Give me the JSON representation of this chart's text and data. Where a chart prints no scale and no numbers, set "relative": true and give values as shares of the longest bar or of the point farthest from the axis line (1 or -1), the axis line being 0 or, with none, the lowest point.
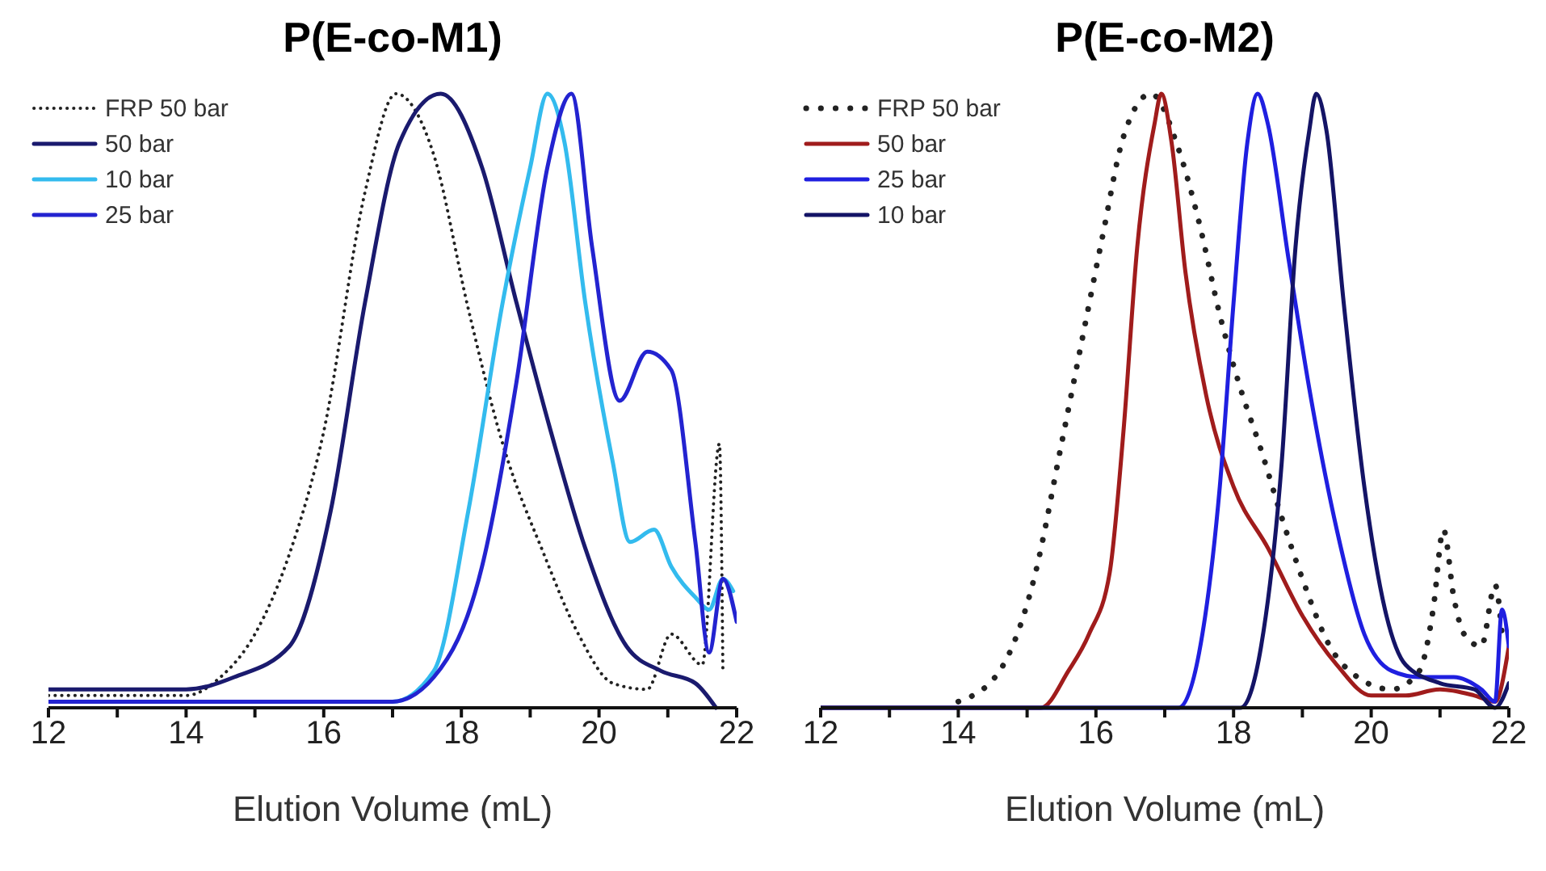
{
  "chart_data": [
    {
      "type": "line",
      "title": "P(E-co-M1)",
      "xlabel": "Elution Volume (mL)",
      "relative": true,
      "xlim": [
        12,
        22
      ],
      "xticks": [
        12,
        {
          "value": 13,
          "label": null
        },
        14,
        {
          "value": 15,
          "label": null
        },
        16,
        {
          "value": 17,
          "label": null
        },
        18,
        {
          "value": 19,
          "label": null
        },
        20,
        {
          "value": 21,
          "label": null
        },
        22
      ],
      "legend": "top left",
      "grid": false,
      "marker": "none",
      "series": [
        {
          "name": "FRP 50 bar",
          "color": "#222222",
          "line_style": "dotted",
          "x": [
            12,
            14.0,
            14.5,
            15.0,
            15.5,
            16.0,
            16.6,
            17.05,
            17.6,
            18.1,
            18.6,
            19.2,
            19.7,
            20.2,
            20.7,
            21.05,
            21.5,
            21.75,
            21.8
          ],
          "values": [
            0.02,
            0.02,
            0.05,
            0.12,
            0.25,
            0.45,
            0.84,
            1.0,
            0.9,
            0.65,
            0.43,
            0.25,
            0.12,
            0.04,
            0.03,
            0.12,
            0.07,
            0.43,
            0.06
          ]
        },
        {
          "name": "50 bar",
          "color": "#1a1a6e",
          "line_style": "solid",
          "x": [
            12,
            14,
            14.7,
            15.5,
            16.1,
            16.6,
            17.1,
            17.7,
            18.3,
            18.8,
            19.3,
            19.8,
            20.4,
            20.9,
            21.4,
            21.7
          ],
          "values": [
            0.03,
            0.03,
            0.05,
            0.1,
            0.32,
            0.66,
            0.92,
            1.0,
            0.88,
            0.66,
            0.45,
            0.26,
            0.1,
            0.06,
            0.04,
            0.0
          ]
        },
        {
          "name": "10 bar",
          "color": "#33bbee",
          "line_style": "solid",
          "x": [
            12,
            17.0,
            17.6,
            18.1,
            18.6,
            19.0,
            19.25,
            19.5,
            19.8,
            20.2,
            20.45,
            20.8,
            21.05,
            21.4,
            21.6,
            21.8,
            21.95
          ],
          "values": [
            0.01,
            0.01,
            0.06,
            0.32,
            0.66,
            0.88,
            1.0,
            0.92,
            0.66,
            0.4,
            0.27,
            0.29,
            0.23,
            0.18,
            0.16,
            0.21,
            0.19
          ]
        },
        {
          "name": "25 bar",
          "color": "#2323d0",
          "line_style": "solid",
          "x": [
            12,
            17.0,
            17.6,
            18.3,
            18.8,
            19.25,
            19.6,
            19.9,
            20.3,
            20.7,
            21.05,
            21.4,
            21.6,
            21.8,
            22.0
          ],
          "values": [
            0.01,
            0.01,
            0.05,
            0.23,
            0.53,
            0.88,
            1.0,
            0.75,
            0.5,
            0.58,
            0.55,
            0.27,
            0.09,
            0.21,
            0.14
          ]
        }
      ]
    },
    {
      "type": "line",
      "title": "P(E-co-M2)",
      "xlabel": "Elution Volume (mL)",
      "relative": true,
      "xlim": [
        12,
        22
      ],
      "xticks": [
        12,
        {
          "value": 13,
          "label": null
        },
        14,
        {
          "value": 15,
          "label": null
        },
        16,
        {
          "value": 17,
          "label": null
        },
        18,
        {
          "value": 19,
          "label": null
        },
        20,
        {
          "value": 21,
          "label": null
        },
        22
      ],
      "legend": "top left",
      "grid": false,
      "marker": "none",
      "series": [
        {
          "name": "FRP 50 bar",
          "color": "#222222",
          "line_style": "dotted",
          "x": [
            14.0,
            14.6,
            15.1,
            15.5,
            15.8,
            16.1,
            16.4,
            16.8,
            17.2,
            17.5,
            17.8,
            18.1,
            18.4,
            18.7,
            19.0,
            19.4,
            19.8,
            20.3,
            20.7,
            20.9,
            21.05,
            21.2,
            21.35,
            21.6,
            21.8,
            21.9
          ],
          "values": [
            0.01,
            0.06,
            0.21,
            0.43,
            0.6,
            0.77,
            0.93,
            1.0,
            0.91,
            0.79,
            0.64,
            0.52,
            0.42,
            0.31,
            0.21,
            0.1,
            0.05,
            0.03,
            0.06,
            0.16,
            0.29,
            0.18,
            0.12,
            0.1,
            0.2,
            0.12
          ]
        },
        {
          "name": "50 bar",
          "color": "#a01c1c",
          "line_style": "solid",
          "x": [
            12,
            15.2,
            15.6,
            15.9,
            16.2,
            16.4,
            16.6,
            16.85,
            16.95,
            17.1,
            17.3,
            17.6,
            18.0,
            18.5,
            19.0,
            19.5,
            20.0,
            20.5,
            21.0,
            21.5,
            21.8,
            22.0
          ],
          "values": [
            0.0,
            0.0,
            0.06,
            0.12,
            0.22,
            0.45,
            0.75,
            0.95,
            1.0,
            0.92,
            0.71,
            0.51,
            0.36,
            0.26,
            0.15,
            0.07,
            0.02,
            0.02,
            0.03,
            0.02,
            0.01,
            0.1
          ]
        },
        {
          "name": "25 bar",
          "color": "#1f1fe0",
          "line_style": "solid",
          "x": [
            12,
            17.2,
            17.5,
            17.8,
            18.0,
            18.2,
            18.35,
            18.5,
            18.8,
            19.1,
            19.5,
            19.9,
            20.3,
            20.7,
            21.2,
            21.6,
            21.8,
            21.9,
            22.0
          ],
          "values": [
            0.0,
            0.0,
            0.09,
            0.36,
            0.66,
            0.92,
            1.0,
            0.95,
            0.73,
            0.52,
            0.29,
            0.12,
            0.06,
            0.05,
            0.05,
            0.03,
            0.01,
            0.16,
            0.1
          ]
        },
        {
          "name": "10 bar",
          "color": "#141466",
          "line_style": "solid",
          "x": [
            12,
            18.1,
            18.4,
            18.7,
            18.9,
            19.1,
            19.2,
            19.35,
            19.6,
            19.9,
            20.2,
            20.5,
            21.0,
            21.5,
            21.8,
            22.0
          ],
          "values": [
            0.0,
            0.0,
            0.1,
            0.4,
            0.75,
            0.94,
            1.0,
            0.94,
            0.66,
            0.36,
            0.16,
            0.07,
            0.04,
            0.03,
            0.0,
            0.04
          ]
        }
      ]
    }
  ]
}
